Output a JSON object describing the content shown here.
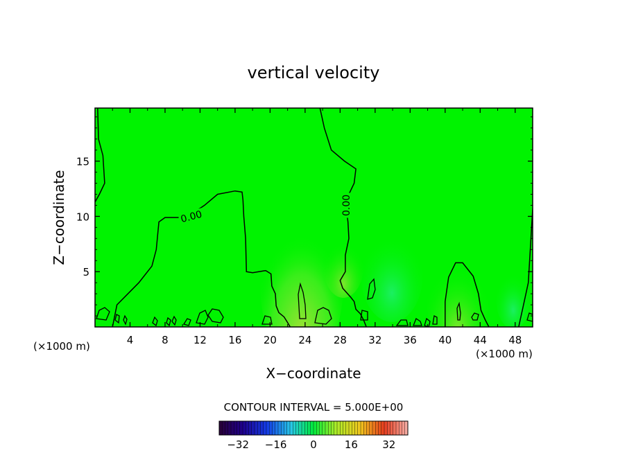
{
  "chart_data": {
    "type": "heatmap",
    "title": "vertical velocity",
    "xlabel": "X−coordinate",
    "ylabel": "Z−coordinate",
    "x_unit_left": "(×1000 m)",
    "x_unit_right": "(×1000 m)",
    "xlim": [
      0,
      50
    ],
    "ylim": [
      0,
      19.8
    ],
    "x_ticks": [
      4,
      8,
      12,
      16,
      20,
      24,
      28,
      32,
      36,
      40,
      44,
      48
    ],
    "y_ticks": [
      5,
      10,
      15
    ],
    "contour_interval_text": "CONTOUR INTERVAL = 5.000E+00",
    "contour_labels": [
      {
        "text": "0.00",
        "x": 11.0,
        "y": 10.0,
        "angle": -15
      },
      {
        "text": "0.00",
        "x": 28.7,
        "y": 11.0,
        "angle": -90
      }
    ],
    "zero_contours": [
      {
        "points": [
          [
            0.3,
            19.8
          ],
          [
            0.4,
            17
          ],
          [
            0.9,
            15.5
          ],
          [
            1.1,
            13
          ],
          [
            0.5,
            12
          ],
          [
            0,
            11.3
          ]
        ]
      },
      {
        "points": [
          [
            2.0,
            0
          ],
          [
            2.5,
            2
          ],
          [
            5,
            4
          ],
          [
            6.5,
            5.5
          ],
          [
            7,
            7
          ],
          [
            7.3,
            9.5
          ],
          [
            8,
            9.9
          ],
          [
            9.5,
            9.9
          ],
          [
            11,
            10.2
          ],
          [
            12.5,
            11
          ],
          [
            14,
            12
          ],
          [
            16,
            12.3
          ],
          [
            16.8,
            12.2
          ],
          [
            16.9,
            11.5
          ],
          [
            17.0,
            10
          ],
          [
            17.2,
            8
          ],
          [
            17.3,
            5
          ],
          [
            18,
            4.9
          ],
          [
            19.5,
            5.1
          ],
          [
            20.1,
            4.8
          ],
          [
            20.2,
            3.7
          ],
          [
            20.6,
            3.0
          ],
          [
            20.7,
            1.9
          ],
          [
            21,
            1.3
          ],
          [
            21.6,
            0.9
          ],
          [
            22,
            0.4
          ],
          [
            22.3,
            0
          ]
        ]
      },
      {
        "points": [
          [
            25.7,
            19.8
          ],
          [
            26.2,
            18
          ],
          [
            27,
            16
          ],
          [
            28.5,
            15
          ],
          [
            29.8,
            14.3
          ],
          [
            29.6,
            13
          ],
          [
            29.0,
            12
          ],
          [
            28.7,
            10.7
          ],
          [
            28.9,
            9.5
          ],
          [
            29.0,
            8
          ],
          [
            28.6,
            6.5
          ],
          [
            28.6,
            5
          ],
          [
            28.0,
            4.2
          ],
          [
            28.3,
            3.5
          ],
          [
            29.2,
            2.7
          ],
          [
            29.6,
            2.3
          ],
          [
            29.8,
            1.6
          ],
          [
            30.3,
            1.2
          ],
          [
            30.7,
            0.6
          ],
          [
            31.0,
            0
          ]
        ]
      },
      {
        "points": [
          [
            40.0,
            0
          ],
          [
            40.0,
            2.3
          ],
          [
            40.4,
            4.5
          ],
          [
            41.2,
            5.8
          ],
          [
            42,
            5.8
          ],
          [
            43.2,
            4.6
          ],
          [
            43.8,
            3
          ],
          [
            44.1,
            1.5
          ],
          [
            44.6,
            0.6
          ],
          [
            45.0,
            0
          ]
        ]
      },
      {
        "points": [
          [
            48.4,
            0
          ],
          [
            48.9,
            1.8
          ],
          [
            49.5,
            4
          ],
          [
            49.8,
            8
          ],
          [
            50,
            10.7
          ]
        ]
      }
    ],
    "colorbar": {
      "ticks": [
        -32,
        -16,
        0,
        16,
        32
      ],
      "tick_labels": [
        "−32",
        "−16",
        "0",
        "16",
        "32"
      ],
      "range": [
        -40,
        40
      ]
    },
    "colors": {
      "field_background": "#00f300",
      "updraft_tint": "#9be84a",
      "downdraft_tint": "#2ff06a",
      "contour": "#000000"
    }
  }
}
